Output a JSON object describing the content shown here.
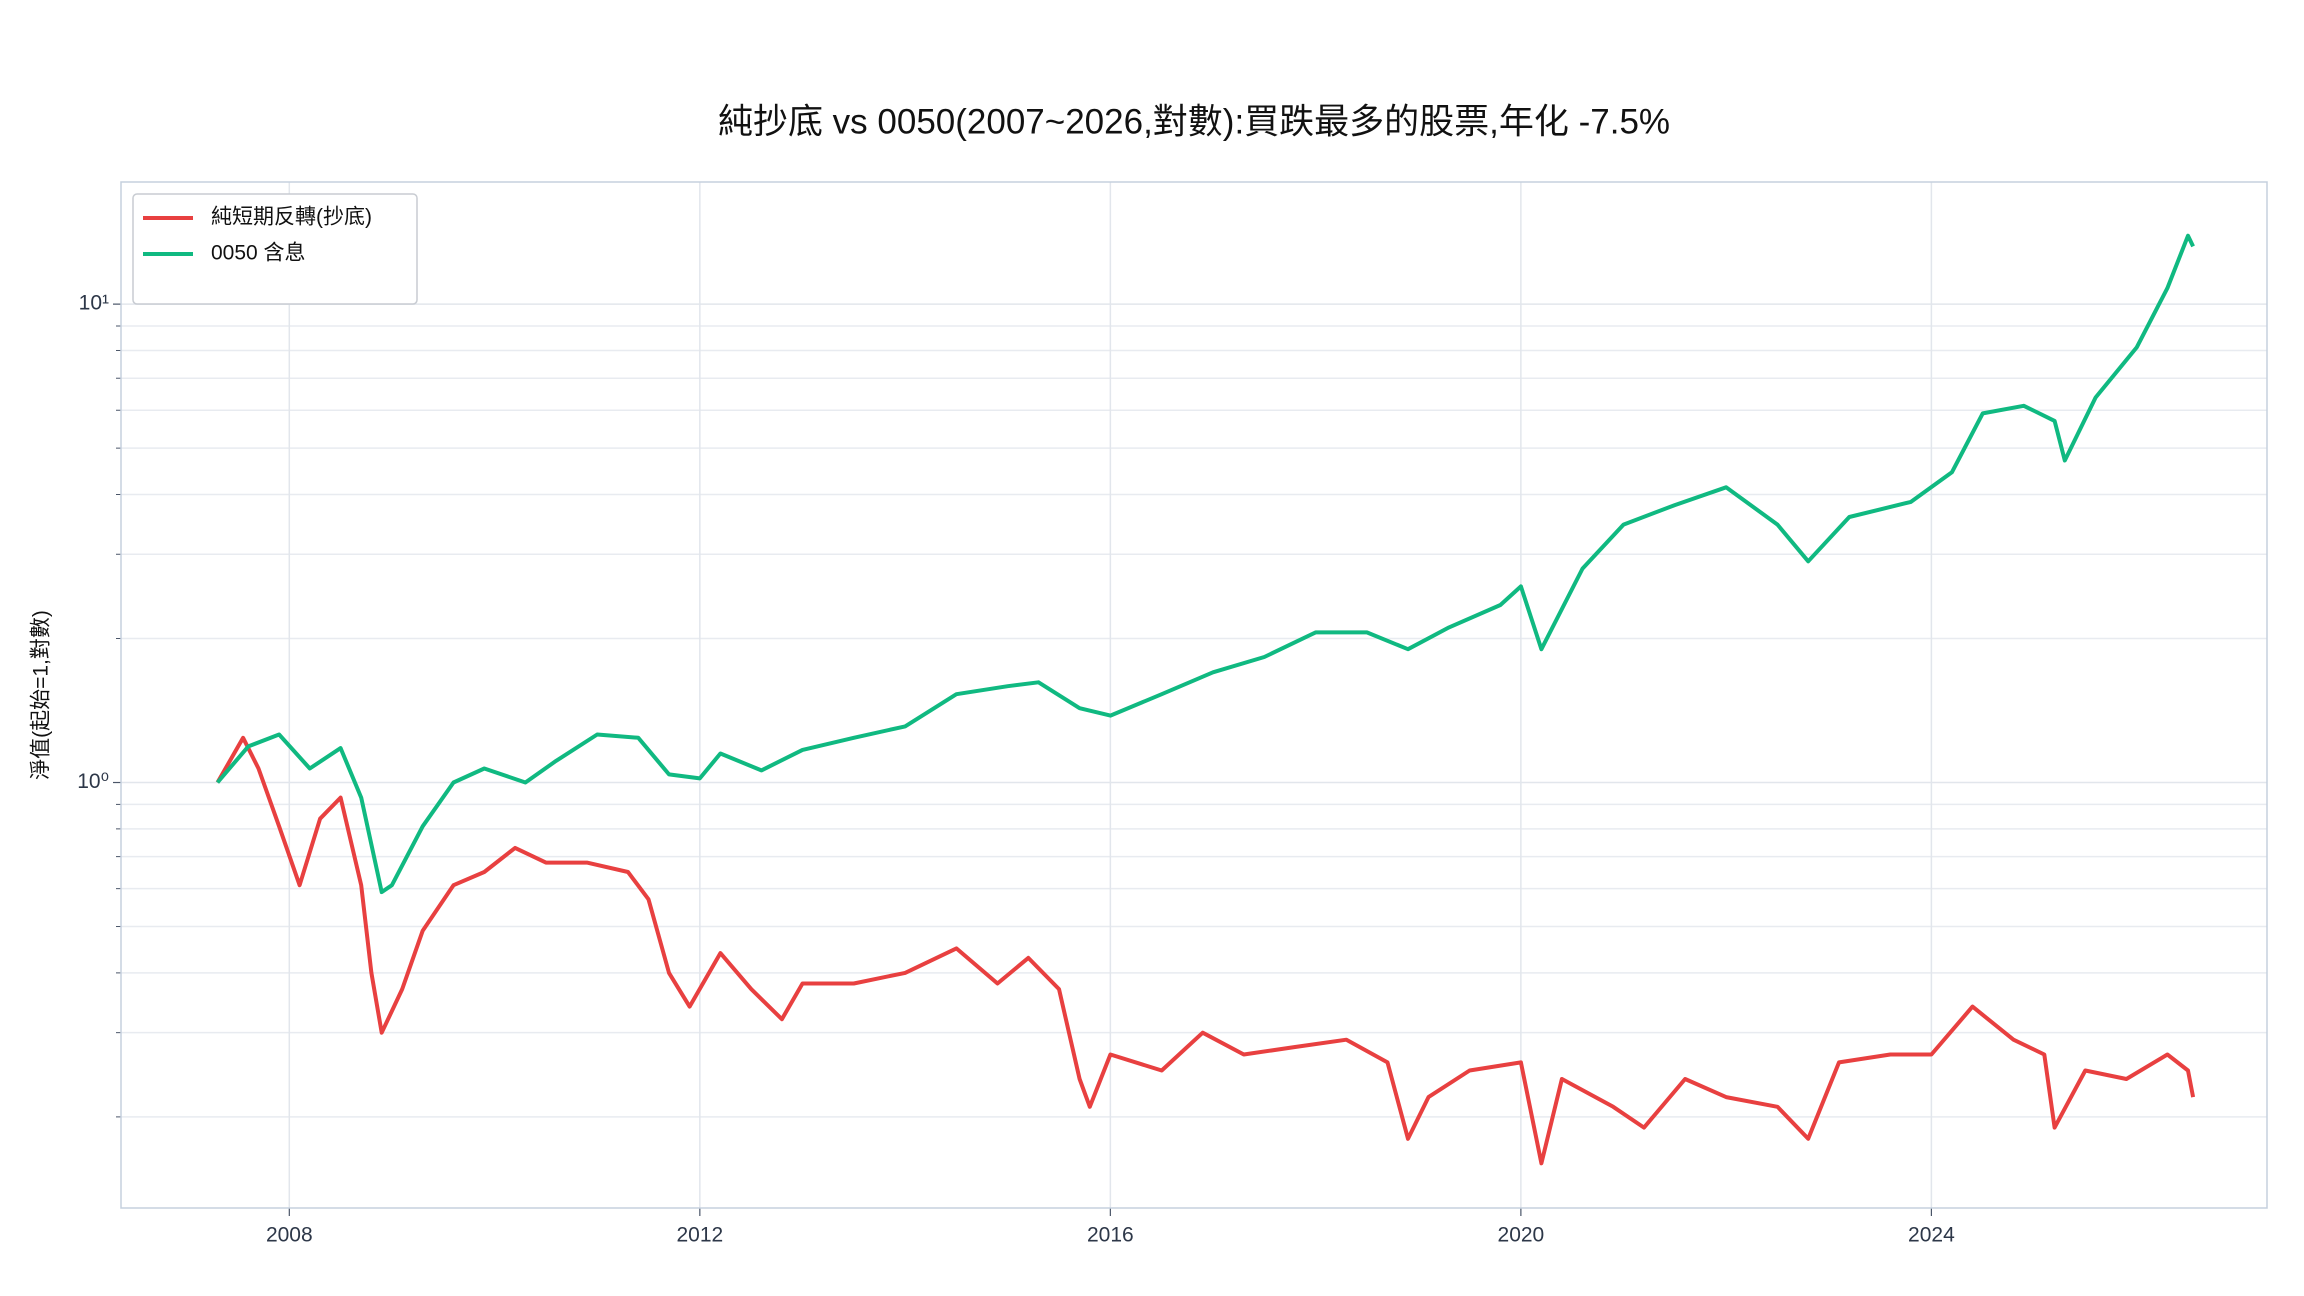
{
  "chart_data": {
    "type": "line",
    "title": "純抄底 vs 0050(2007~2026,對數):買跌最多的股票,年化 -7.5%",
    "y_label": "淨值(起始=1,對數)",
    "y_scale": "log",
    "grid": true,
    "legend": "upper left",
    "xlim": [
      2006.36,
      2027.27
    ],
    "xticks": [
      2008,
      2012,
      2016,
      2020,
      2024
    ],
    "ylim": [
      0.129,
      18.0
    ],
    "yticks": [
      {
        "value": 1,
        "label": "10⁰"
      },
      {
        "value": 10,
        "label": "10¹"
      }
    ],
    "yminorticks": [
      0.2,
      0.3,
      0.4,
      0.5,
      0.6,
      0.7,
      0.8,
      0.9,
      2,
      3,
      4,
      5,
      6,
      7,
      8,
      9
    ],
    "series": [
      {
        "name": "純短期反轉(抄底)",
        "color": "#e84040",
        "x": [
          2007.3,
          2007.55,
          2007.7,
          2007.9,
          2008.1,
          2008.3,
          2008.5,
          2008.7,
          2008.8,
          2008.9,
          2009.1,
          2009.3,
          2009.6,
          2009.9,
          2010.2,
          2010.5,
          2010.9,
          2011.3,
          2011.5,
          2011.7,
          2011.9,
          2012.2,
          2012.5,
          2012.8,
          2013.0,
          2013.5,
          2014.0,
          2014.5,
          2014.9,
          2015.2,
          2015.5,
          2015.7,
          2015.8,
          2016.0,
          2016.5,
          2016.9,
          2017.3,
          2017.8,
          2018.3,
          2018.7,
          2018.9,
          2019.1,
          2019.5,
          2020.0,
          2020.2,
          2020.4,
          2020.9,
          2021.2,
          2021.6,
          2022.0,
          2022.5,
          2022.8,
          2023.1,
          2023.6,
          2024.0,
          2024.4,
          2024.8,
          2025.1,
          2025.2,
          2025.5,
          2025.9,
          2026.3,
          2026.5,
          2026.55
        ],
        "values": [
          1.0,
          1.24,
          1.07,
          0.81,
          0.61,
          0.84,
          0.93,
          0.61,
          0.4,
          0.3,
          0.37,
          0.49,
          0.61,
          0.65,
          0.73,
          0.68,
          0.68,
          0.65,
          0.57,
          0.4,
          0.34,
          0.44,
          0.37,
          0.32,
          0.38,
          0.38,
          0.4,
          0.45,
          0.38,
          0.43,
          0.37,
          0.24,
          0.21,
          0.27,
          0.25,
          0.3,
          0.27,
          0.28,
          0.29,
          0.26,
          0.18,
          0.22,
          0.25,
          0.26,
          0.16,
          0.24,
          0.21,
          0.19,
          0.24,
          0.22,
          0.21,
          0.18,
          0.26,
          0.27,
          0.27,
          0.34,
          0.29,
          0.27,
          0.19,
          0.25,
          0.24,
          0.27,
          0.25,
          0.22
        ]
      },
      {
        "name": "0050 含息",
        "color": "#10b981",
        "x": [
          2007.3,
          2007.6,
          2007.9,
          2008.2,
          2008.5,
          2008.7,
          2008.9,
          2009.0,
          2009.3,
          2009.6,
          2009.9,
          2010.3,
          2010.6,
          2011.0,
          2011.4,
          2011.7,
          2012.0,
          2012.2,
          2012.6,
          2013.0,
          2013.5,
          2014.0,
          2014.5,
          2015.0,
          2015.3,
          2015.7,
          2016.0,
          2016.5,
          2017.0,
          2017.5,
          2018.0,
          2018.5,
          2018.9,
          2019.3,
          2019.8,
          2020.0,
          2020.2,
          2020.6,
          2021.0,
          2021.5,
          2022.0,
          2022.5,
          2022.8,
          2023.2,
          2023.8,
          2024.2,
          2024.5,
          2024.9,
          2025.2,
          2025.3,
          2025.6,
          2026.0,
          2026.3,
          2026.5,
          2026.55
        ],
        "values": [
          1.0,
          1.19,
          1.26,
          1.07,
          1.18,
          0.93,
          0.59,
          0.61,
          0.81,
          1.0,
          1.07,
          1.0,
          1.11,
          1.26,
          1.24,
          1.04,
          1.02,
          1.15,
          1.06,
          1.17,
          1.24,
          1.31,
          1.53,
          1.59,
          1.62,
          1.43,
          1.38,
          1.53,
          1.7,
          1.83,
          2.06,
          2.06,
          1.9,
          2.11,
          2.35,
          2.57,
          1.9,
          2.8,
          3.46,
          3.8,
          4.14,
          3.46,
          2.9,
          3.59,
          3.86,
          4.45,
          5.91,
          6.13,
          5.7,
          4.71,
          6.38,
          8.12,
          10.8,
          13.9,
          13.2
        ]
      }
    ]
  }
}
